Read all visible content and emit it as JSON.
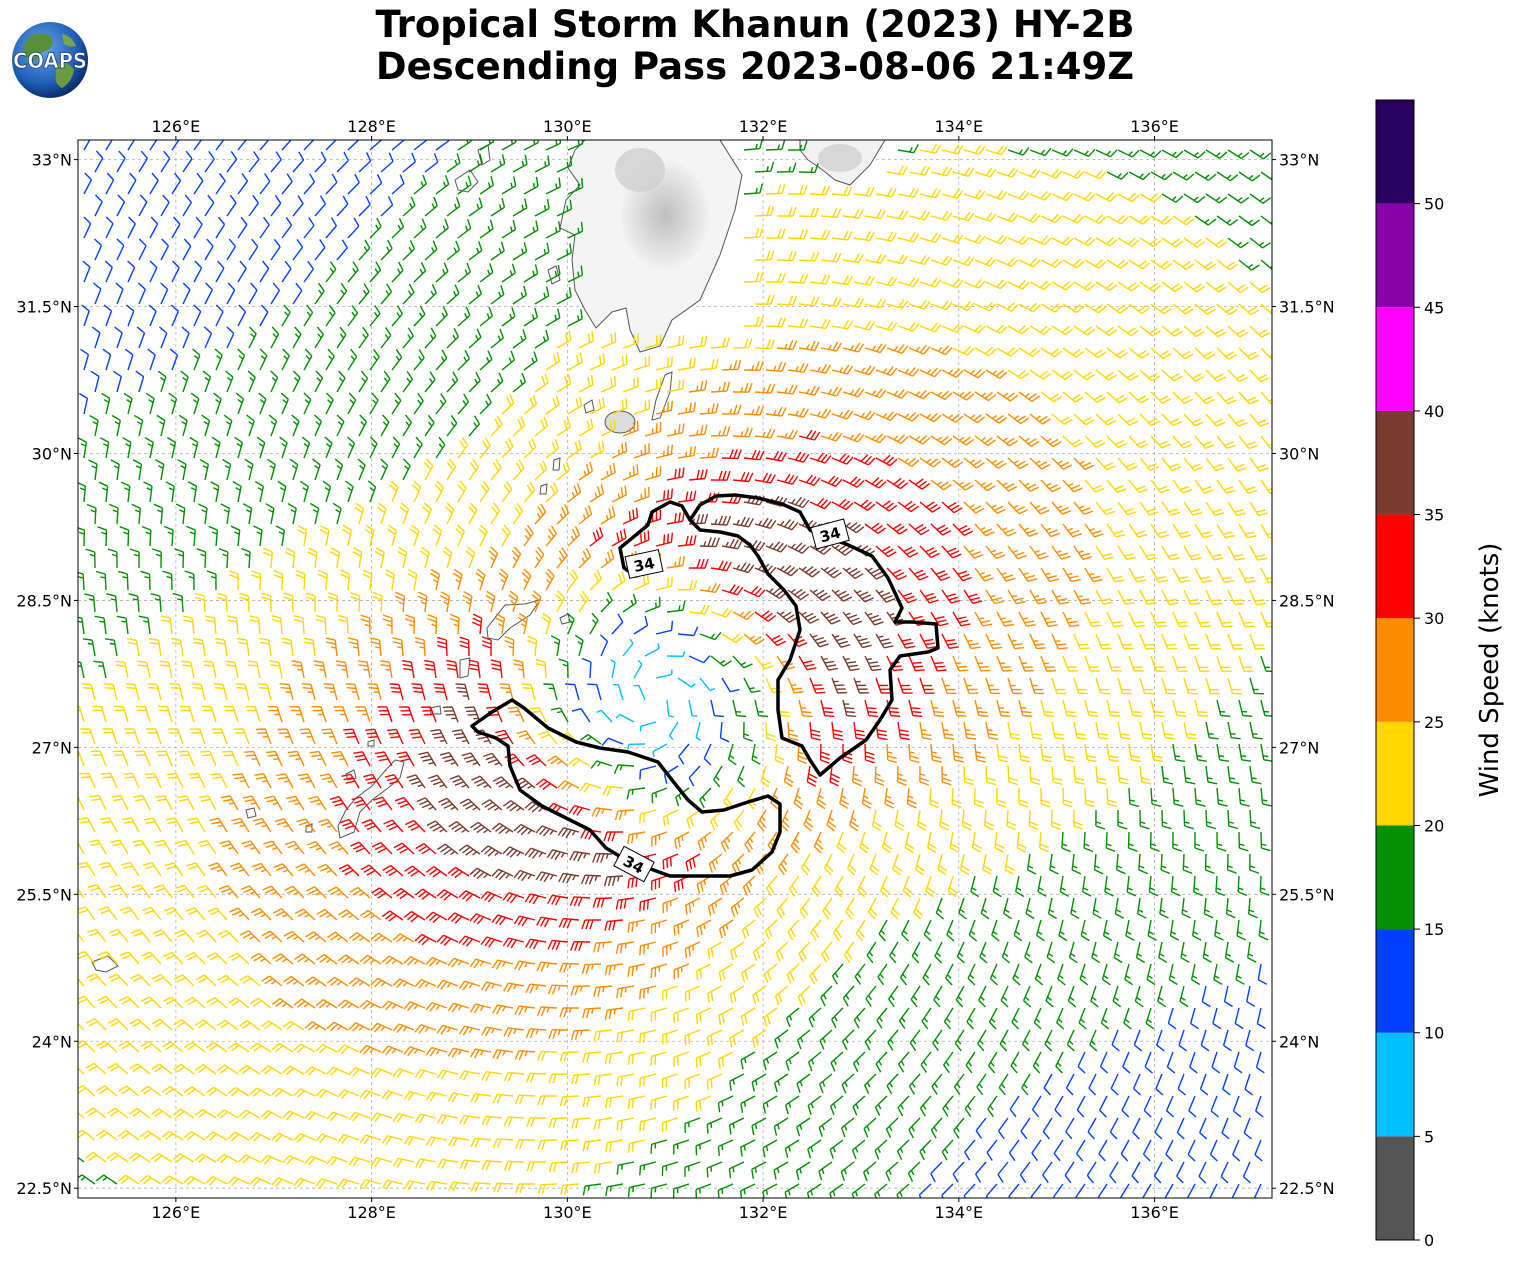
{
  "title": {
    "line1": "Tropical Storm Khanun (2023) HY-2B",
    "line2": "Descending Pass 2023-08-06 21:49Z"
  },
  "logo": {
    "text": "COAPS"
  },
  "map": {
    "lon_ticks": [
      "126°E",
      "128°E",
      "130°E",
      "132°E",
      "134°E",
      "136°E"
    ],
    "lat_ticks": [
      "33°N",
      "31.5°N",
      "30°N",
      "28.5°N",
      "27°N",
      "25.5°N",
      "24°N",
      "22.5°N"
    ],
    "lon_range": [
      125.0,
      137.2
    ],
    "lat_range": [
      22.4,
      33.2
    ],
    "gridlines": true,
    "storm_center": {
      "lon": 130.9,
      "lat": 27.5
    },
    "contour_label": "34",
    "contour_label_count": 3
  },
  "colorbar": {
    "label": "Wind Speed (knots)",
    "ticks": [
      "0",
      "5",
      "10",
      "15",
      "20",
      "25",
      "30",
      "35",
      "40",
      "45",
      "50"
    ],
    "bins": [
      {
        "range": [
          0,
          5
        ],
        "color": "#555555"
      },
      {
        "range": [
          5,
          10
        ],
        "color": "#00bfff"
      },
      {
        "range": [
          10,
          15
        ],
        "color": "#0040ff"
      },
      {
        "range": [
          15,
          20
        ],
        "color": "#009000"
      },
      {
        "range": [
          20,
          25
        ],
        "color": "#ffd700"
      },
      {
        "range": [
          25,
          30
        ],
        "color": "#ff8c00"
      },
      {
        "range": [
          30,
          35
        ],
        "color": "#ff0000"
      },
      {
        "range": [
          35,
          40
        ],
        "color": "#7a3b2e"
      },
      {
        "range": [
          40,
          45
        ],
        "color": "#ff00ff"
      },
      {
        "range": [
          45,
          50
        ],
        "color": "#8800aa"
      },
      {
        "range": [
          50,
          55
        ],
        "color": "#2a0060"
      }
    ]
  }
}
